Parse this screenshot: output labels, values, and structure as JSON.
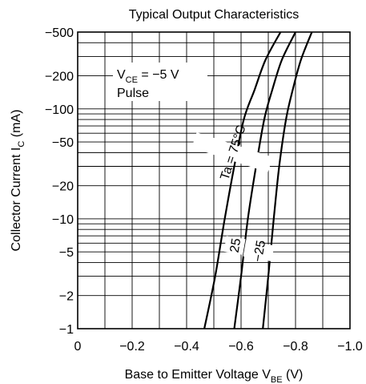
{
  "chart_data": {
    "type": "line",
    "title": "Typical Output Characteristics",
    "xlabel": {
      "main": "Base to Emitter Voltage  V",
      "sub": "BE",
      "unit": "  (V)"
    },
    "ylabel": {
      "main": "Collector Current  I",
      "sub": "C",
      "unit": "  (mA)"
    },
    "xlim": [
      0,
      -1.0
    ],
    "ylim": [
      -1,
      -500
    ],
    "yscale": "log",
    "grid": true,
    "x_ticks": [
      {
        "value": 0,
        "label": "0"
      },
      {
        "value": -0.2,
        "label": "−0.2"
      },
      {
        "value": -0.4,
        "label": "−0.4"
      },
      {
        "value": -0.6,
        "label": "−0.6"
      },
      {
        "value": -0.8,
        "label": "−0.8"
      },
      {
        "value": -1.0,
        "label": "−1.0"
      }
    ],
    "x_minor_gridlines": [
      -0.1,
      -0.3,
      -0.5,
      -0.7,
      -0.9
    ],
    "y_ticks": [
      {
        "value": -500,
        "label": "−500"
      },
      {
        "value": -200,
        "label": "−200"
      },
      {
        "value": -100,
        "label": "−100"
      },
      {
        "value": -50,
        "label": "−50"
      },
      {
        "value": -20,
        "label": "−20"
      },
      {
        "value": -10,
        "label": "−10"
      },
      {
        "value": -5,
        "label": "−5"
      },
      {
        "value": -2,
        "label": "−2"
      },
      {
        "value": -1,
        "label": "−1"
      }
    ],
    "y_gridlines": [
      -1,
      -2,
      -3,
      -4,
      -5,
      -6,
      -7,
      -8,
      -9,
      -10,
      -20,
      -30,
      -40,
      -50,
      -60,
      -70,
      -80,
      -90,
      -100,
      -200,
      -300,
      -400,
      -500
    ],
    "annotation": {
      "line1_main": "V",
      "line1_sub": "CE",
      "line1_rest": " = −5 V",
      "line2": "Pulse"
    },
    "series": [
      {
        "name": "Ta = 75°C",
        "points": [
          [
            -0.465,
            -1
          ],
          [
            -0.505,
            -3
          ],
          [
            -0.54,
            -10
          ],
          [
            -0.575,
            -30
          ],
          [
            -0.61,
            -80
          ],
          [
            -0.65,
            -150
          ],
          [
            -0.69,
            -280
          ],
          [
            -0.745,
            -500
          ]
        ]
      },
      {
        "name": "25",
        "points": [
          [
            -0.575,
            -1
          ],
          [
            -0.6,
            -3
          ],
          [
            -0.625,
            -10
          ],
          [
            -0.655,
            -30
          ],
          [
            -0.685,
            -80
          ],
          [
            -0.715,
            -150
          ],
          [
            -0.75,
            -280
          ],
          [
            -0.8,
            -500
          ]
        ]
      },
      {
        "name": "−25",
        "points": [
          [
            -0.68,
            -1
          ],
          [
            -0.7,
            -3
          ],
          [
            -0.72,
            -10
          ],
          [
            -0.74,
            -30
          ],
          [
            -0.765,
            -80
          ],
          [
            -0.79,
            -150
          ],
          [
            -0.82,
            -280
          ],
          [
            -0.86,
            -500
          ]
        ]
      }
    ]
  }
}
